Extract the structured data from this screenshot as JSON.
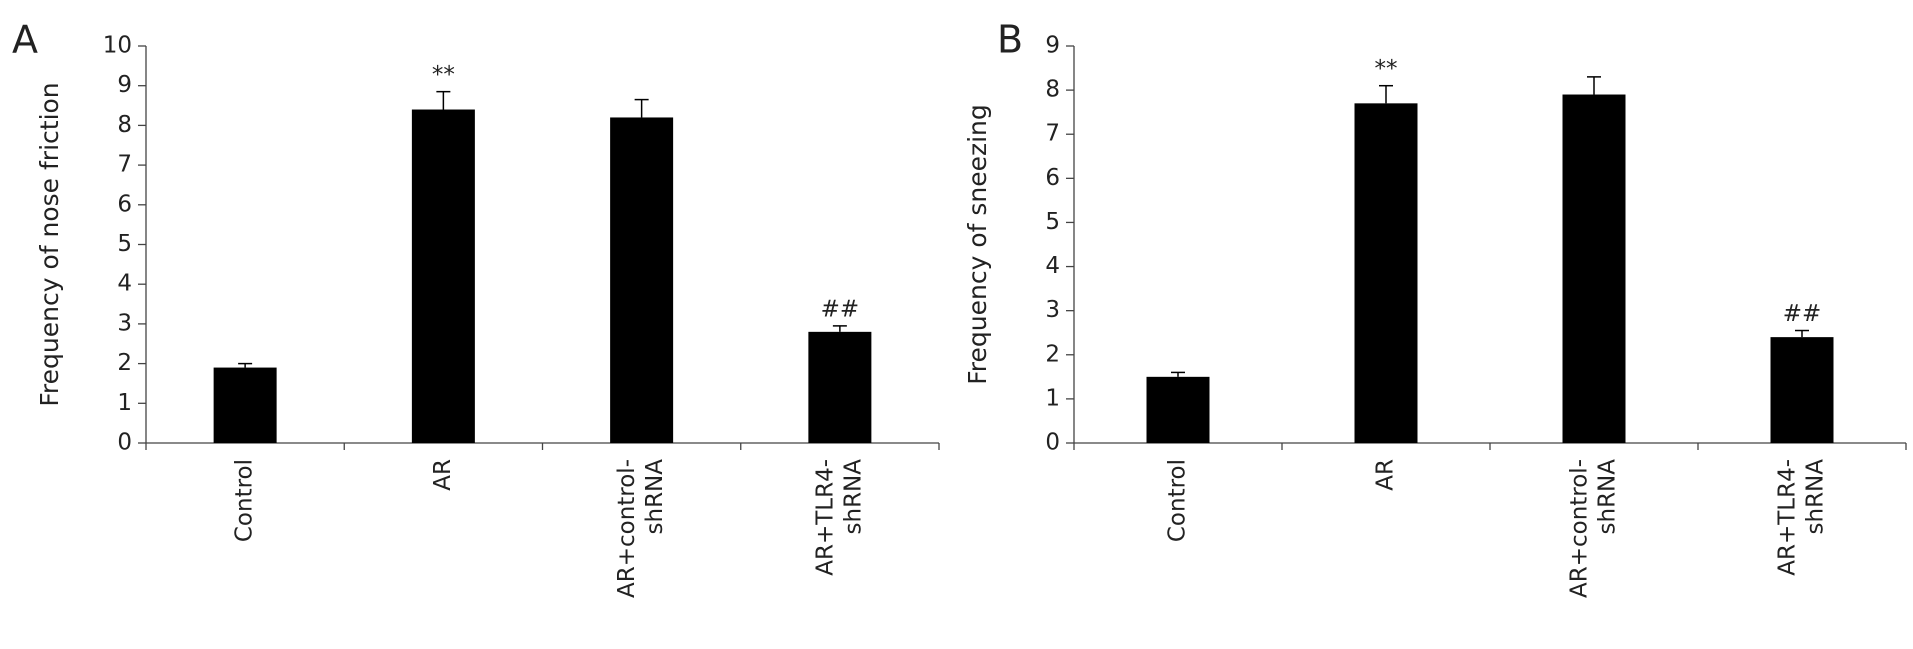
{
  "chart_data": [
    {
      "type": "bar",
      "panel": "A",
      "y_label": "Frequency of nose friction",
      "categories": [
        [
          "Control"
        ],
        [
          "AR"
        ],
        [
          "AR+control-",
          "shRNA"
        ],
        [
          "AR+TLR4-",
          "shRNA"
        ]
      ],
      "values": [
        1.9,
        8.4,
        8.2,
        2.8
      ],
      "errors": [
        0.1,
        0.45,
        0.45,
        0.15
      ],
      "markers": [
        null,
        "**",
        null,
        "##"
      ],
      "color": "#000000",
      "ylim": [
        0,
        10
      ],
      "yticks": [
        0,
        1,
        2,
        3,
        4,
        5,
        6,
        7,
        8,
        9,
        10
      ]
    },
    {
      "type": "bar",
      "panel": "B",
      "y_label": "Frequency of sneezing",
      "categories": [
        [
          "Control"
        ],
        [
          "AR"
        ],
        [
          "AR+control-",
          "shRNA"
        ],
        [
          "AR+TLR4-",
          "shRNA"
        ]
      ],
      "values": [
        1.5,
        7.7,
        7.9,
        2.4
      ],
      "errors": [
        0.1,
        0.4,
        0.4,
        0.15
      ],
      "markers": [
        null,
        "**",
        null,
        "##"
      ],
      "color": "#000000",
      "ylim": [
        0,
        9
      ],
      "yticks": [
        0,
        1,
        2,
        3,
        4,
        5,
        6,
        7,
        8,
        9
      ]
    }
  ]
}
